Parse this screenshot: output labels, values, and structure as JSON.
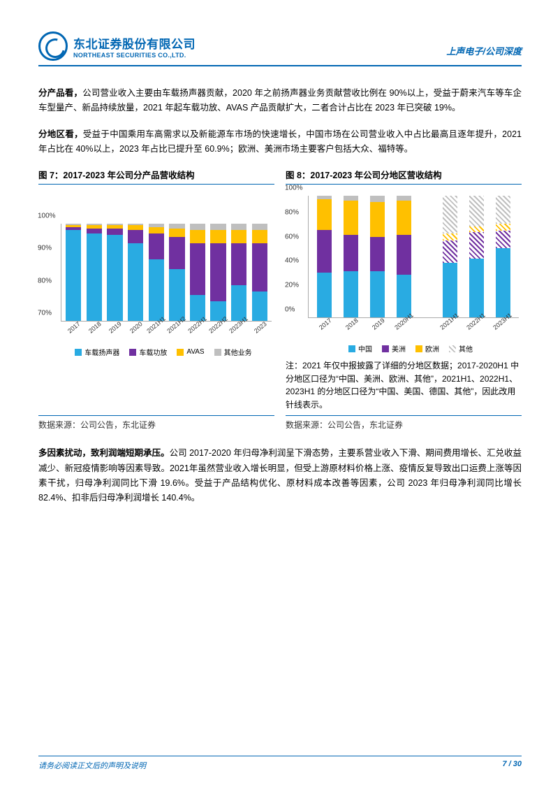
{
  "header": {
    "company_cn": "东北证券股份有限公司",
    "company_en": "NORTHEAST SECURITIES CO.,LTD.",
    "right_label": "上声电子/公司深度"
  },
  "para1": {
    "lead": "分产品看，",
    "body": "公司营业收入主要由车载扬声器贡献，2020 年之前扬声器业务贡献营收比例在 90%以上，受益于蔚来汽车等车企车型量产、新品持续放量，2021 年起车载功放、AVAS 产品贡献扩大，二者合计占比在 2023 年已突破 19%。"
  },
  "para2": {
    "lead": "分地区看，",
    "body": "受益于中国乘用车高需求以及新能源车市场的快速增长，中国市场在公司营业收入中占比最高且逐年提升，2021 年占比在 40%以上，2023 年占比已提升至 60.9%；欧洲、美洲市场主要客户包括大众、福特等。"
  },
  "chart7": {
    "title": "图 7：2017-2023 年公司分产品营收结构",
    "colors": {
      "speaker": "#29abe2",
      "amp": "#7030a0",
      "avas": "#ffc000",
      "other": "#bfbfbf"
    },
    "ylim": [
      70,
      100
    ],
    "yticks": [
      "70%",
      "80%",
      "90%",
      "100%"
    ],
    "categories": [
      "2017",
      "2018",
      "2019",
      "2020",
      "2021H1",
      "2021H2",
      "2022H1",
      "2022H2",
      "2023H1",
      "2023"
    ],
    "series": {
      "speaker": [
        98,
        97,
        96.5,
        94,
        89,
        86,
        78,
        76,
        81,
        79
      ],
      "amp": [
        1,
        1.5,
        2,
        4,
        8,
        10,
        16,
        18,
        13,
        15
      ],
      "avas": [
        0.5,
        1,
        1,
        1.5,
        2,
        2.5,
        4,
        4,
        4,
        4
      ],
      "other": [
        0.5,
        0.5,
        0.5,
        0.5,
        1,
        1.5,
        2,
        2,
        2,
        2
      ]
    },
    "legend": [
      "车载扬声器",
      "车载功放",
      "AVAS",
      "其他业务"
    ],
    "source": "数据来源：公司公告，东北证券"
  },
  "chart8": {
    "title": "图 8：2017-2023 年公司分地区营收结构",
    "colors": {
      "china": "#29abe2",
      "america": "#7030a0",
      "europe": "#ffc000",
      "other": "#bfbfbf"
    },
    "ylim": [
      0,
      100
    ],
    "yticks": [
      "0%",
      "20%",
      "40%",
      "60%",
      "80%",
      "100%"
    ],
    "categories": [
      "2017",
      "2018",
      "2019",
      "2020H1",
      "2021H1",
      "2022H1",
      "2023H1"
    ],
    "hatched_after_index": 4,
    "series": {
      "china": [
        37,
        38,
        38,
        35,
        45,
        48,
        57
      ],
      "america": [
        35,
        30,
        28,
        33,
        18,
        22,
        14
      ],
      "europe": [
        25,
        28,
        29,
        28,
        6,
        5,
        6
      ],
      "other": [
        3,
        4,
        5,
        4,
        31,
        25,
        23
      ]
    },
    "legend": [
      "中国",
      "美洲",
      "欧洲",
      "其他"
    ],
    "note": "注：2021 年仅中报披露了详细的分地区数据；2017-2020H1 中分地区口径为“中国、美洲、欧洲、其他”，2021H1、2022H1、2023H1 的分地区口径为“中国、美国、德国、其他”，因此改用针线表示。",
    "source": "数据来源：公司公告，东北证券"
  },
  "para3": {
    "lead": "多因素扰动，致利润端短期承压。",
    "body": "公司 2017-2020 年归母净利润呈下滑态势，主要系营业收入下滑、期间费用增长、汇兑收益减少、新冠疫情影响等因素导致。2021年虽然营业收入增长明显，但受上游原材料价格上涨、疫情反复导致出口运费上涨等因素干扰，归母净利润同比下滑 19.6%。受益于产品结构优化、原材料成本改善等因素，公司 2023 年归母净利润同比增长 82.4%、扣非后归母净利润增长 140.4%。"
  },
  "footer": {
    "disclaimer": "请务必阅读正文后的声明及说明",
    "page": "7 / 30"
  }
}
